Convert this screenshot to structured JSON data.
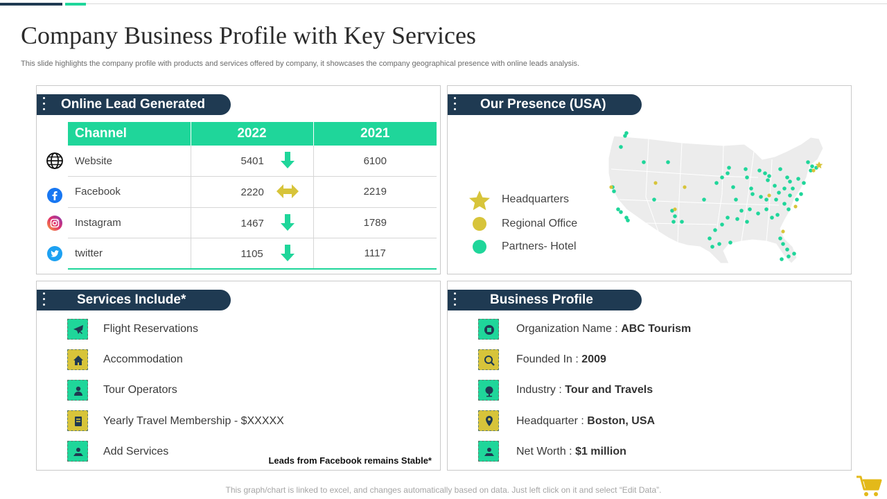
{
  "header": {
    "title": "Company Business Profile with Key Services",
    "subtitle": "This slide highlights the company profile with products and services offered by company, it showcases the company geographical presence with online leads analysis."
  },
  "leads": {
    "heading": "Online Lead Generated",
    "columns": [
      "Channel",
      "2022",
      "2021"
    ],
    "rows": [
      {
        "channel": "Website",
        "v2022": "5401",
        "v2021": "6100",
        "trend": "down",
        "icon": "globe-icon"
      },
      {
        "channel": "Facebook",
        "v2022": "2220",
        "v2021": "2219",
        "trend": "stable",
        "icon": "facebook-icon"
      },
      {
        "channel": "Instagram",
        "v2022": "1467",
        "v2021": "1789",
        "trend": "down",
        "icon": "instagram-icon"
      },
      {
        "channel": "twitter",
        "v2022": "1105",
        "v2021": "1117",
        "trend": "down",
        "icon": "twitter-icon"
      }
    ]
  },
  "presence": {
    "heading": "Our Presence (USA)",
    "legend": [
      {
        "label": "Headquarters",
        "marker": "star-icon",
        "color": "#d7c43a"
      },
      {
        "label": "Regional Office",
        "marker": "circle-icon",
        "color": "#d7c43a"
      },
      {
        "label": "Partners- Hotel",
        "marker": "circle-icon",
        "color": "#1fd69a"
      }
    ]
  },
  "services": {
    "heading": "Services Include*",
    "items": [
      {
        "label": "Flight Reservations",
        "icon": "airplane-icon",
        "color": "green"
      },
      {
        "label": "Accommodation",
        "icon": "house-icon",
        "color": "yellow"
      },
      {
        "label": "Tour Operators",
        "icon": "tour-guide-icon",
        "color": "green"
      },
      {
        "label": "Yearly Travel Membership - $XXXXX",
        "icon": "membership-card-icon",
        "color": "yellow"
      },
      {
        "label": "Add Services",
        "icon": "add-service-icon",
        "color": "green"
      }
    ],
    "note": "Leads from Facebook remains Stable*"
  },
  "profile": {
    "heading": "Business Profile",
    "items": [
      {
        "label": "Organization Name : ",
        "value": "ABC Tourism",
        "icon": "organization-icon",
        "color": "green"
      },
      {
        "label": "Founded In  : ",
        "value": "2009",
        "icon": "search-icon",
        "color": "yellow"
      },
      {
        "label": "Industry  : ",
        "value": "Tour and Travels",
        "icon": "globe-icon",
        "color": "green"
      },
      {
        "label": "Headquarter : ",
        "value": "Boston, USA",
        "icon": "map-pin-icon",
        "color": "yellow"
      },
      {
        "label": "Net Worth : ",
        "value": "$1 million",
        "icon": "money-icon",
        "color": "green"
      }
    ]
  },
  "footer": {
    "text": "This graph/chart is linked to excel, and changes automatically based on data. Just left click on it and select “Edit Data”."
  },
  "colors": {
    "accent": "#1fd69a",
    "navy": "#1f3a52",
    "gold": "#d7c43a"
  }
}
